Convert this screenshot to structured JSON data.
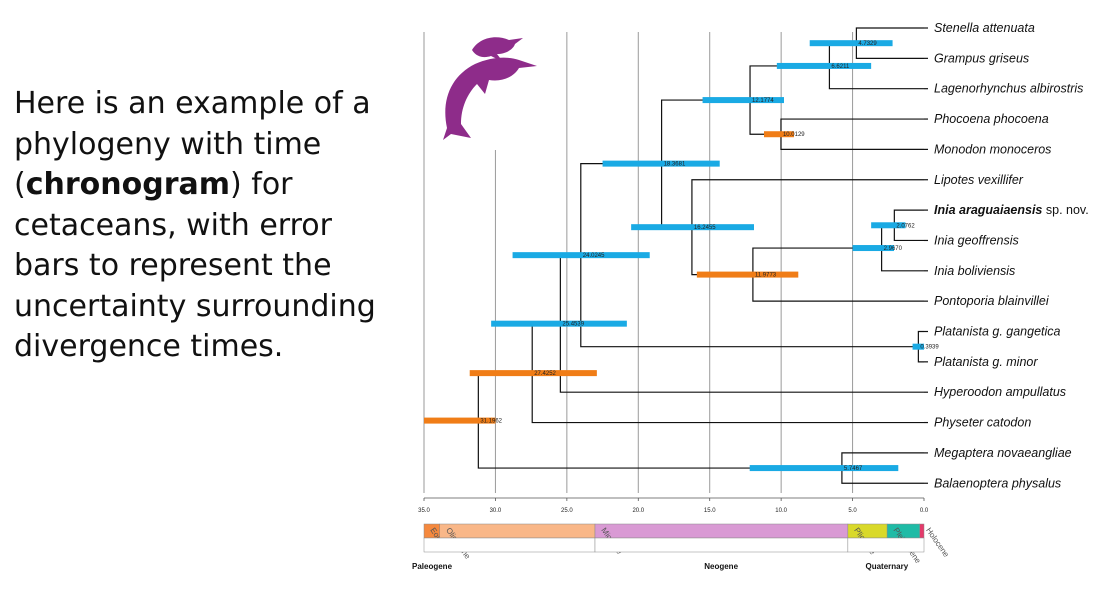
{
  "intro": {
    "pre": "Here is an example of a phylogeny with time (",
    "strong": "chronogram",
    "post": ") for cetaceans, with error bars to represent the uncertainty surrounding divergence times."
  },
  "colors": {
    "molecular": "#1aaae4",
    "fossil": "#f07d17",
    "logo": "#8e2c8a",
    "branch": "#111111"
  },
  "chart_data": {
    "type": "chronogram",
    "axis": {
      "min": 35,
      "max": 0,
      "ticks": [
        "35.0",
        "30.0",
        "25.0",
        "20.0",
        "15.0",
        "10.0",
        "5.0",
        "0.0"
      ],
      "tick_values": [
        35,
        30,
        25,
        20,
        15,
        10,
        5,
        0
      ]
    },
    "taxa": [
      {
        "name": "Stenella attenuata",
        "suffix": ""
      },
      {
        "name": "Grampus griseus",
        "suffix": ""
      },
      {
        "name": "Lagenorhynchus albirostris",
        "suffix": ""
      },
      {
        "name": "Phocoena phocoena",
        "suffix": ""
      },
      {
        "name": "Monodon monoceros",
        "suffix": ""
      },
      {
        "name": "Lipotes vexillifer",
        "suffix": ""
      },
      {
        "name": "Inia araguaiaensis",
        "suffix": " sp. nov.",
        "bold": true
      },
      {
        "name": "Inia geoffrensis",
        "suffix": ""
      },
      {
        "name": "Inia boliviensis",
        "suffix": ""
      },
      {
        "name": "Pontoporia blainvillei",
        "suffix": ""
      },
      {
        "name": "Platanista g. gangetica",
        "suffix": ""
      },
      {
        "name": "Platanista g. minor",
        "suffix": ""
      },
      {
        "name": "Hyperoodon ampullatus",
        "suffix": ""
      },
      {
        "name": "Physeter catodon",
        "suffix": ""
      },
      {
        "name": "Megaptera novaeangliae",
        "suffix": ""
      },
      {
        "name": "Balaenoptera physalus",
        "suffix": ""
      }
    ],
    "nodes": [
      {
        "age": 4.7329,
        "label": "4.7329",
        "lo": 2.2,
        "hi": 8.0,
        "color": "molecular",
        "children": [
          0,
          1
        ]
      },
      {
        "age": 6.6211,
        "label": "6.6211",
        "lo": 3.7,
        "hi": 10.3,
        "color": "molecular",
        "children": [
          "n0",
          2
        ]
      },
      {
        "age": 10.0129,
        "label": "10.0129",
        "lo": 9.1,
        "hi": 11.2,
        "color": "fossil",
        "children": [
          3,
          4
        ]
      },
      {
        "age": 12.1774,
        "label": "12.1774",
        "lo": 9.8,
        "hi": 15.5,
        "color": "molecular",
        "children": [
          "n1",
          "n2"
        ]
      },
      {
        "age": 2.0762,
        "label": "2.0762",
        "lo": 1.3,
        "hi": 3.7,
        "color": "molecular",
        "children": [
          6,
          7
        ]
      },
      {
        "age": 2.967,
        "label": "2.9670",
        "lo": 2.1,
        "hi": 5.0,
        "color": "molecular",
        "children": [
          "n4",
          8
        ]
      },
      {
        "age": 11.9773,
        "label": "11.9773",
        "lo": 8.8,
        "hi": 15.9,
        "color": "fossil",
        "children": [
          "n5",
          9
        ]
      },
      {
        "age": 16.2455,
        "label": "16.2455",
        "lo": 11.9,
        "hi": 20.5,
        "color": "molecular",
        "children": [
          5,
          "n6"
        ]
      },
      {
        "age": 18.3681,
        "label": "18.3681",
        "lo": 14.3,
        "hi": 22.5,
        "color": "molecular",
        "children": [
          "n3",
          "n7"
        ]
      },
      {
        "age": 0.3939,
        "label": "0.3939",
        "lo": 0.0,
        "hi": 0.8,
        "color": "molecular",
        "children": [
          10,
          11
        ]
      },
      {
        "age": 24.0245,
        "label": "24.0245",
        "lo": 19.2,
        "hi": 28.8,
        "color": "molecular",
        "children": [
          "n8",
          "n9"
        ]
      },
      {
        "age": 25.4539,
        "label": "25.4539",
        "lo": 20.8,
        "hi": 30.3,
        "color": "molecular",
        "children": [
          "n10",
          12
        ]
      },
      {
        "age": 27.4252,
        "label": "27.4252",
        "lo": 22.9,
        "hi": 31.8,
        "color": "fossil",
        "children": [
          "n11",
          13
        ]
      },
      {
        "age": 5.7467,
        "label": "5.7467",
        "lo": 1.8,
        "hi": 12.2,
        "color": "molecular",
        "children": [
          14,
          15
        ]
      },
      {
        "age": 31.1962,
        "label": "31.1962",
        "lo": 30.0,
        "hi": 35.0,
        "color": "fossil",
        "children": [
          "n12",
          "n13"
        ]
      }
    ],
    "epochs": [
      {
        "name": "Eocene",
        "start": 35,
        "end": 33.9,
        "color": "#f5893e"
      },
      {
        "name": "Oligocene",
        "start": 33.9,
        "end": 23.03,
        "color": "#f9b788"
      },
      {
        "name": "Miocene",
        "start": 23.03,
        "end": 5.33,
        "color": "#d99ad4"
      },
      {
        "name": "Pliocene",
        "start": 5.33,
        "end": 2.58,
        "color": "#d9d92a"
      },
      {
        "name": "Pleistocene",
        "start": 2.58,
        "end": 0.3,
        "color": "#1fbba6"
      },
      {
        "name": "Holocene",
        "start": 0.3,
        "end": 0,
        "color": "#e33a6a"
      }
    ],
    "periods": [
      {
        "name": "Paleogene",
        "start": 35,
        "end": 23.03
      },
      {
        "name": "Neogene",
        "start": 23.03,
        "end": 5.33
      },
      {
        "name": "Quaternary",
        "start": 5.33,
        "end": 0
      }
    ]
  }
}
